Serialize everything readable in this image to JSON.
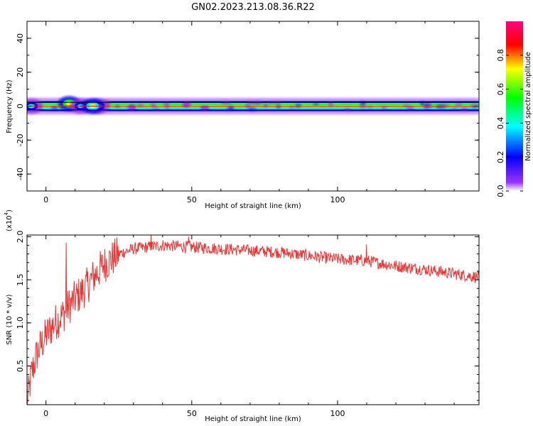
{
  "title": "GN02.2023.213.08.36.R22",
  "chart_data": [
    {
      "type": "heatmap",
      "xlabel": "Height of straight line (km)",
      "ylabel": "Frequency (Hz)",
      "xlim": [
        -6.5,
        148.5
      ],
      "ylim": [
        -50,
        50
      ],
      "x_ticks": [
        0,
        50,
        100
      ],
      "y_ticks": [
        40,
        20,
        0,
        -20,
        -40
      ],
      "y_tick_labels": [
        "40",
        "20",
        "0",
        "-20",
        "-40"
      ],
      "colorbar": {
        "label": "Normalized spectral amplitude",
        "range": [
          0,
          1
        ],
        "ticks": [
          0.0,
          0.2,
          0.4,
          0.6,
          0.8
        ],
        "tick_labels": [
          "0.0",
          "0.2",
          "0.4",
          "0.6",
          "0.8"
        ],
        "colors": [
          "#ffffff",
          "#9933ff",
          "#0000ff",
          "#00ffff",
          "#00ff00",
          "#ffff00",
          "#ff0000",
          "#ff0080"
        ]
      },
      "band": {
        "center_frequency": 0,
        "half_width": 1.5
      },
      "ridge_color": "#ff0000",
      "blobs": [
        {
          "x": -6.5,
          "x2": 148.5,
          "f": 0,
          "level": 0.15
        },
        {
          "x": -5,
          "f": 0,
          "level": 0.45
        },
        {
          "x": 8,
          "f": 1.5,
          "level": 0.85
        },
        {
          "x": 12,
          "f": 0,
          "level": 0.5
        },
        {
          "x": 18,
          "f": 0,
          "level": 0.45
        },
        {
          "x": 16,
          "f": 0,
          "level": 0.75
        }
      ]
    },
    {
      "type": "line",
      "xlabel": "Height of straight line (km)",
      "ylabel": "SNR (10 * v/v)",
      "y_multiplier": "(x10",
      "y_multiplier_exp": "4",
      "y_multiplier_close": ")",
      "xlim": [
        -6.5,
        148.5
      ],
      "ylim": [
        0.05,
        2.02
      ],
      "x_ticks": [
        0,
        50,
        100
      ],
      "y_ticks": [
        0.5,
        1.0,
        1.5,
        2.0
      ],
      "y_tick_labels": [
        "0.5",
        "1.0",
        "1.5",
        "2.0"
      ],
      "color": "#ee3333",
      "envelope": {
        "x": [
          -6.5,
          -5,
          -3,
          0,
          3,
          6,
          8,
          10,
          13,
          16,
          20,
          25,
          30,
          35,
          40,
          50,
          60,
          70,
          80,
          90,
          100,
          110,
          120,
          130,
          140,
          148.5
        ],
        "y": [
          0.05,
          0.4,
          0.65,
          0.85,
          1.0,
          1.1,
          1.2,
          1.28,
          1.38,
          1.52,
          1.68,
          1.8,
          1.86,
          1.88,
          1.9,
          1.88,
          1.86,
          1.84,
          1.82,
          1.78,
          1.74,
          1.72,
          1.66,
          1.62,
          1.57,
          1.53
        ]
      },
      "spikes": [
        {
          "x": 6.9,
          "y": 1.93
        },
        {
          "x": 36,
          "y": 2.02
        },
        {
          "x": 49,
          "y": 2.0
        },
        {
          "x": 110,
          "y": 1.91
        }
      ]
    }
  ]
}
